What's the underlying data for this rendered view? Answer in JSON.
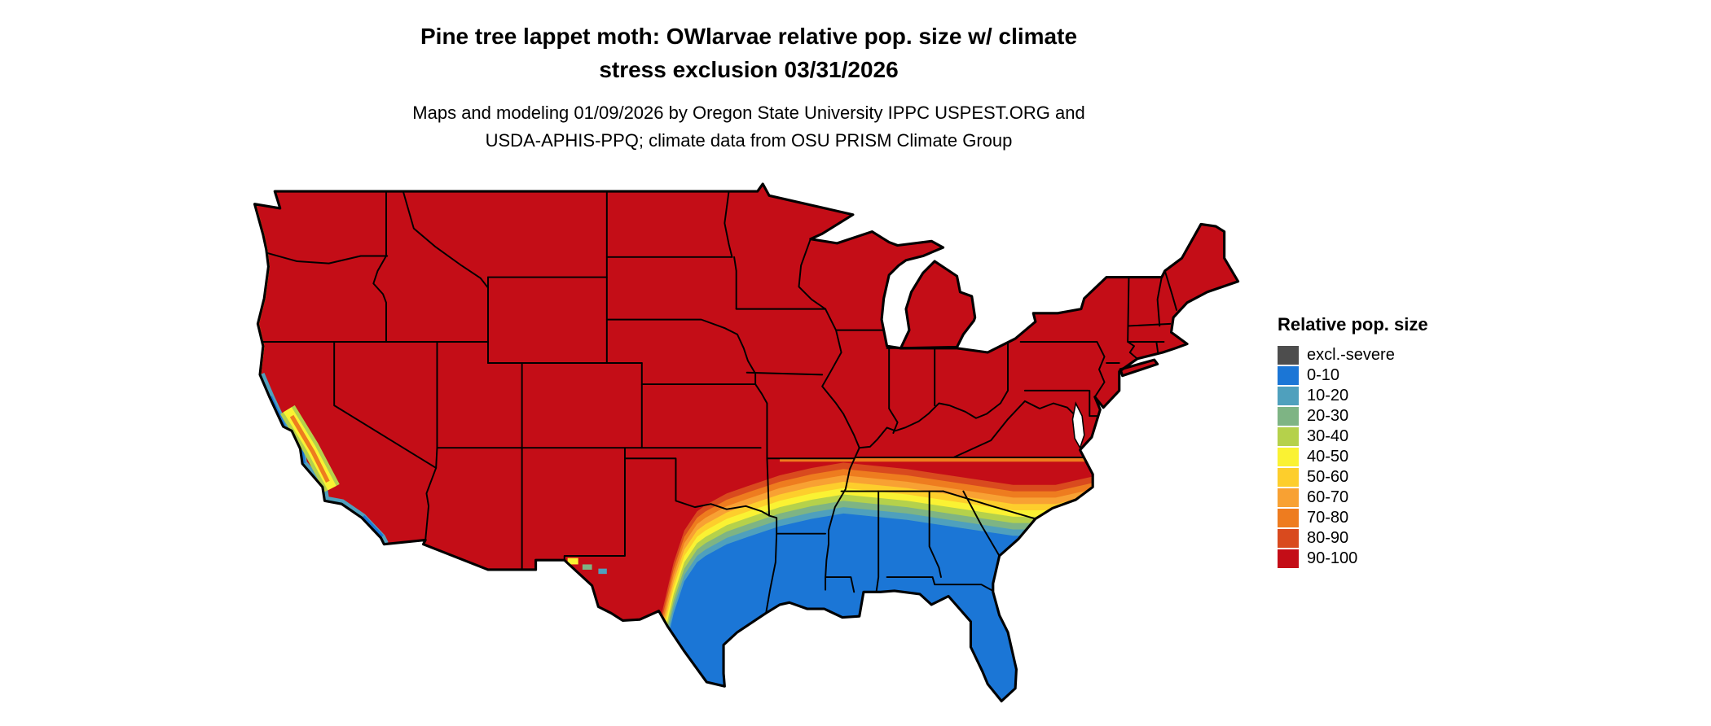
{
  "title": {
    "line1": "Pine tree lappet moth: OWlarvae relative pop. size w/ climate",
    "line2": "stress exclusion 03/31/2026"
  },
  "subtitle": {
    "line1": "Maps and modeling 01/09/2026 by Oregon State University IPPC USPEST.ORG and",
    "line2": "USDA-APHIS-PPQ; climate data from OSU PRISM Climate Group"
  },
  "legend": {
    "title": "Relative pop. size",
    "items": [
      {
        "label": "excl.-severe",
        "color": "#4d4d4d"
      },
      {
        "label": "0-10",
        "color": "#1b76d6"
      },
      {
        "label": "10-20",
        "color": "#4fa0bd"
      },
      {
        "label": "20-30",
        "color": "#7eb484"
      },
      {
        "label": "30-40",
        "color": "#b5d14b"
      },
      {
        "label": "40-50",
        "color": "#faf233"
      },
      {
        "label": "50-60",
        "color": "#fdce2c"
      },
      {
        "label": "60-70",
        "color": "#f8a133"
      },
      {
        "label": "70-80",
        "color": "#ee7c1f"
      },
      {
        "label": "80-90",
        "color": "#d94a1e"
      },
      {
        "label": "90-100",
        "color": "#c40d17"
      }
    ]
  }
}
